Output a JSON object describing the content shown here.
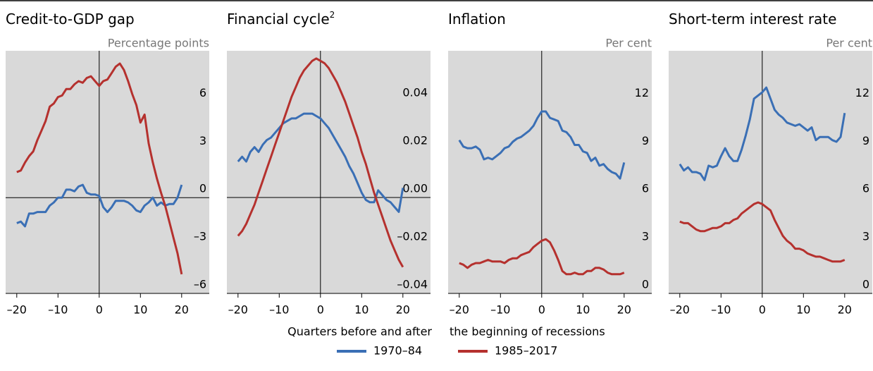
{
  "chart_data": [
    {
      "type": "line",
      "title": "Credit-to-GDP gap",
      "unit": "Percentage points",
      "x": [
        -20,
        -19,
        -18,
        -17,
        -16,
        -15,
        -14,
        -13,
        -12,
        -11,
        -10,
        -9,
        -8,
        -7,
        -6,
        -5,
        -4,
        -3,
        -2,
        -1,
        0,
        1,
        2,
        3,
        4,
        5,
        6,
        7,
        8,
        9,
        10,
        11,
        12,
        13,
        14,
        15,
        16,
        17,
        18,
        19,
        20
      ],
      "xlim": [
        -22.7,
        26.7
      ],
      "xticks": [
        {
          "value": -20,
          "label": "–20"
        },
        {
          "value": -10,
          "label": "–10"
        },
        0,
        10,
        20
      ],
      "ylim": [
        -6,
        9.2
      ],
      "yticks": [
        6,
        3,
        0,
        {
          "value": -3,
          "label": "–3"
        },
        {
          "value": -6,
          "label": "–6"
        }
      ],
      "series": [
        {
          "name": "1970–84",
          "color": "#3a6fb5",
          "values": [
            -1.6,
            -1.5,
            -1.8,
            -1.0,
            -1.0,
            -0.9,
            -0.9,
            -0.9,
            -0.5,
            -0.3,
            0,
            0,
            0.5,
            0.5,
            0.4,
            0.7,
            0.8,
            0.3,
            0.2,
            0.2,
            0.1,
            -0.6,
            -0.9,
            -0.6,
            -0.2,
            -0.2,
            -0.2,
            -0.3,
            -0.5,
            -0.8,
            -0.9,
            -0.5,
            -0.3,
            0,
            -0.5,
            -0.3,
            -0.5,
            -0.4,
            -0.4,
            0,
            0.8
          ]
        },
        {
          "name": "1985–2017",
          "color": "#b5312e",
          "values": [
            1.6,
            1.7,
            2.2,
            2.6,
            2.9,
            3.6,
            4.2,
            4.8,
            5.7,
            5.9,
            6.3,
            6.4,
            6.8,
            6.8,
            7.1,
            7.3,
            7.2,
            7.5,
            7.6,
            7.3,
            7.0,
            7.3,
            7.4,
            7.8,
            8.2,
            8.4,
            8.0,
            7.3,
            6.5,
            5.8,
            4.7,
            5.2,
            3.4,
            2.2,
            1.2,
            0.3,
            -0.5,
            -1.5,
            -2.5,
            -3.5,
            -4.8
          ]
        }
      ]
    },
    {
      "type": "line",
      "title": "Financial cycle",
      "title_superscript": "2",
      "xlabel": "Quarters before and after",
      "x": [
        -20,
        -19,
        -18,
        -17,
        -16,
        -15,
        -14,
        -13,
        -12,
        -11,
        -10,
        -9,
        -8,
        -7,
        -6,
        -5,
        -4,
        -3,
        -2,
        -1,
        0,
        1,
        2,
        3,
        4,
        5,
        6,
        7,
        8,
        9,
        10,
        11,
        12,
        13,
        14,
        15,
        16,
        17,
        18,
        19,
        20
      ],
      "xlim": [
        -22.7,
        26.7
      ],
      "xticks": [
        {
          "value": -20,
          "label": "–20"
        },
        {
          "value": -10,
          "label": "–10"
        },
        0,
        10,
        20
      ],
      "ylim": [
        -0.04,
        0.0612
      ],
      "yticks": [
        0.04,
        0.02,
        {
          "value": 0,
          "label": "0.00"
        },
        {
          "value": -0.02,
          "label": "–0.02"
        },
        {
          "value": -0.04,
          "label": "–0.04"
        }
      ],
      "series": [
        {
          "name": "1970–84",
          "color": "#3a6fb5",
          "values": [
            0.015,
            0.017,
            0.015,
            0.019,
            0.021,
            0.019,
            0.022,
            0.024,
            0.025,
            0.027,
            0.029,
            0.031,
            0.032,
            0.033,
            0.033,
            0.034,
            0.035,
            0.035,
            0.035,
            0.034,
            0.033,
            0.031,
            0.029,
            0.026,
            0.023,
            0.02,
            0.017,
            0.013,
            0.01,
            0.006,
            0.002,
            -0.001,
            -0.002,
            -0.002,
            0.003,
            0.001,
            -0.001,
            -0.002,
            -0.004,
            -0.006,
            0.004
          ]
        },
        {
          "name": "1985–2017",
          "color": "#b5312e",
          "values": [
            -0.016,
            -0.014,
            -0.011,
            -0.007,
            -0.003,
            0.002,
            0.007,
            0.012,
            0.017,
            0.022,
            0.027,
            0.032,
            0.037,
            0.042,
            0.046,
            0.05,
            0.053,
            0.055,
            0.057,
            0.058,
            0.057,
            0.056,
            0.054,
            0.051,
            0.048,
            0.044,
            0.04,
            0.035,
            0.03,
            0.025,
            0.019,
            0.014,
            0.008,
            0.002,
            -0.003,
            -0.008,
            -0.013,
            -0.018,
            -0.022,
            -0.026,
            -0.029
          ]
        }
      ]
    },
    {
      "type": "line",
      "title": "Inflation",
      "unit": "Per cent",
      "xlabel": "the beginning of recessions",
      "x": [
        -20,
        -19,
        -18,
        -17,
        -16,
        -15,
        -14,
        -13,
        -12,
        -11,
        -10,
        -9,
        -8,
        -7,
        -6,
        -5,
        -4,
        -3,
        -2,
        -1,
        0,
        1,
        2,
        3,
        4,
        5,
        6,
        7,
        8,
        9,
        10,
        11,
        12,
        13,
        14,
        15,
        16,
        17,
        18,
        19,
        20
      ],
      "xlim": [
        -22.7,
        26.7
      ],
      "xticks": [
        {
          "value": -20,
          "label": "–20"
        },
        {
          "value": -10,
          "label": "–10"
        },
        0,
        10,
        20
      ],
      "ylim": [
        0,
        15.2
      ],
      "yticks": [
        12,
        9,
        6,
        3,
        0
      ],
      "series": [
        {
          "name": "1970–84",
          "color": "#3a6fb5",
          "values": [
            9.6,
            9.2,
            9.1,
            9.1,
            9.2,
            9.0,
            8.4,
            8.5,
            8.4,
            8.6,
            8.8,
            9.1,
            9.2,
            9.5,
            9.7,
            9.8,
            10.0,
            10.2,
            10.5,
            11.0,
            11.4,
            11.4,
            11.0,
            10.9,
            10.8,
            10.2,
            10.1,
            9.8,
            9.3,
            9.3,
            8.9,
            8.8,
            8.3,
            8.5,
            8.0,
            8.1,
            7.8,
            7.6,
            7.5,
            7.2,
            8.2
          ]
        },
        {
          "name": "1985–2017",
          "color": "#b5312e",
          "values": [
            1.9,
            1.8,
            1.6,
            1.8,
            1.9,
            1.9,
            2.0,
            2.1,
            2.0,
            2.0,
            2.0,
            1.9,
            2.1,
            2.2,
            2.2,
            2.4,
            2.5,
            2.6,
            2.9,
            3.1,
            3.3,
            3.4,
            3.2,
            2.7,
            2.1,
            1.4,
            1.2,
            1.2,
            1.3,
            1.2,
            1.2,
            1.4,
            1.4,
            1.6,
            1.6,
            1.5,
            1.3,
            1.2,
            1.2,
            1.2,
            1.3
          ]
        }
      ]
    },
    {
      "type": "line",
      "title": "Short-term interest rate",
      "unit": "Per cent",
      "x": [
        -20,
        -19,
        -18,
        -17,
        -16,
        -15,
        -14,
        -13,
        -12,
        -11,
        -10,
        -9,
        -8,
        -7,
        -6,
        -5,
        -4,
        -3,
        -2,
        -1,
        0,
        1,
        2,
        3,
        4,
        5,
        6,
        7,
        8,
        9,
        10,
        11,
        12,
        13,
        14,
        15,
        16,
        17,
        18,
        19,
        20
      ],
      "xlim": [
        -22.7,
        26.7
      ],
      "xticks": [
        {
          "value": -20,
          "label": "–20"
        },
        {
          "value": -10,
          "label": "–10"
        },
        0,
        10,
        20
      ],
      "ylim": [
        0,
        15.2
      ],
      "yticks": [
        12,
        9,
        6,
        3,
        0
      ],
      "series": [
        {
          "name": "1970–84",
          "color": "#3a6fb5",
          "values": [
            8.1,
            7.7,
            7.9,
            7.6,
            7.6,
            7.5,
            7.1,
            8.0,
            7.9,
            8.0,
            8.6,
            9.1,
            8.6,
            8.3,
            8.3,
            9.0,
            9.9,
            10.9,
            12.2,
            12.4,
            12.6,
            12.9,
            12.2,
            11.5,
            11.2,
            11.0,
            10.7,
            10.6,
            10.5,
            10.6,
            10.4,
            10.2,
            10.4,
            9.6,
            9.8,
            9.8,
            9.8,
            9.6,
            9.5,
            9.8,
            11.3
          ]
        },
        {
          "name": "1985–2017",
          "color": "#b5312e",
          "values": [
            4.5,
            4.4,
            4.4,
            4.2,
            4.0,
            3.9,
            3.9,
            4.0,
            4.1,
            4.1,
            4.2,
            4.4,
            4.4,
            4.6,
            4.7,
            5.0,
            5.2,
            5.4,
            5.6,
            5.7,
            5.6,
            5.4,
            5.2,
            4.6,
            4.1,
            3.6,
            3.3,
            3.1,
            2.8,
            2.8,
            2.7,
            2.5,
            2.4,
            2.3,
            2.3,
            2.2,
            2.1,
            2.0,
            2.0,
            2.0,
            2.1
          ]
        }
      ]
    }
  ]
}
